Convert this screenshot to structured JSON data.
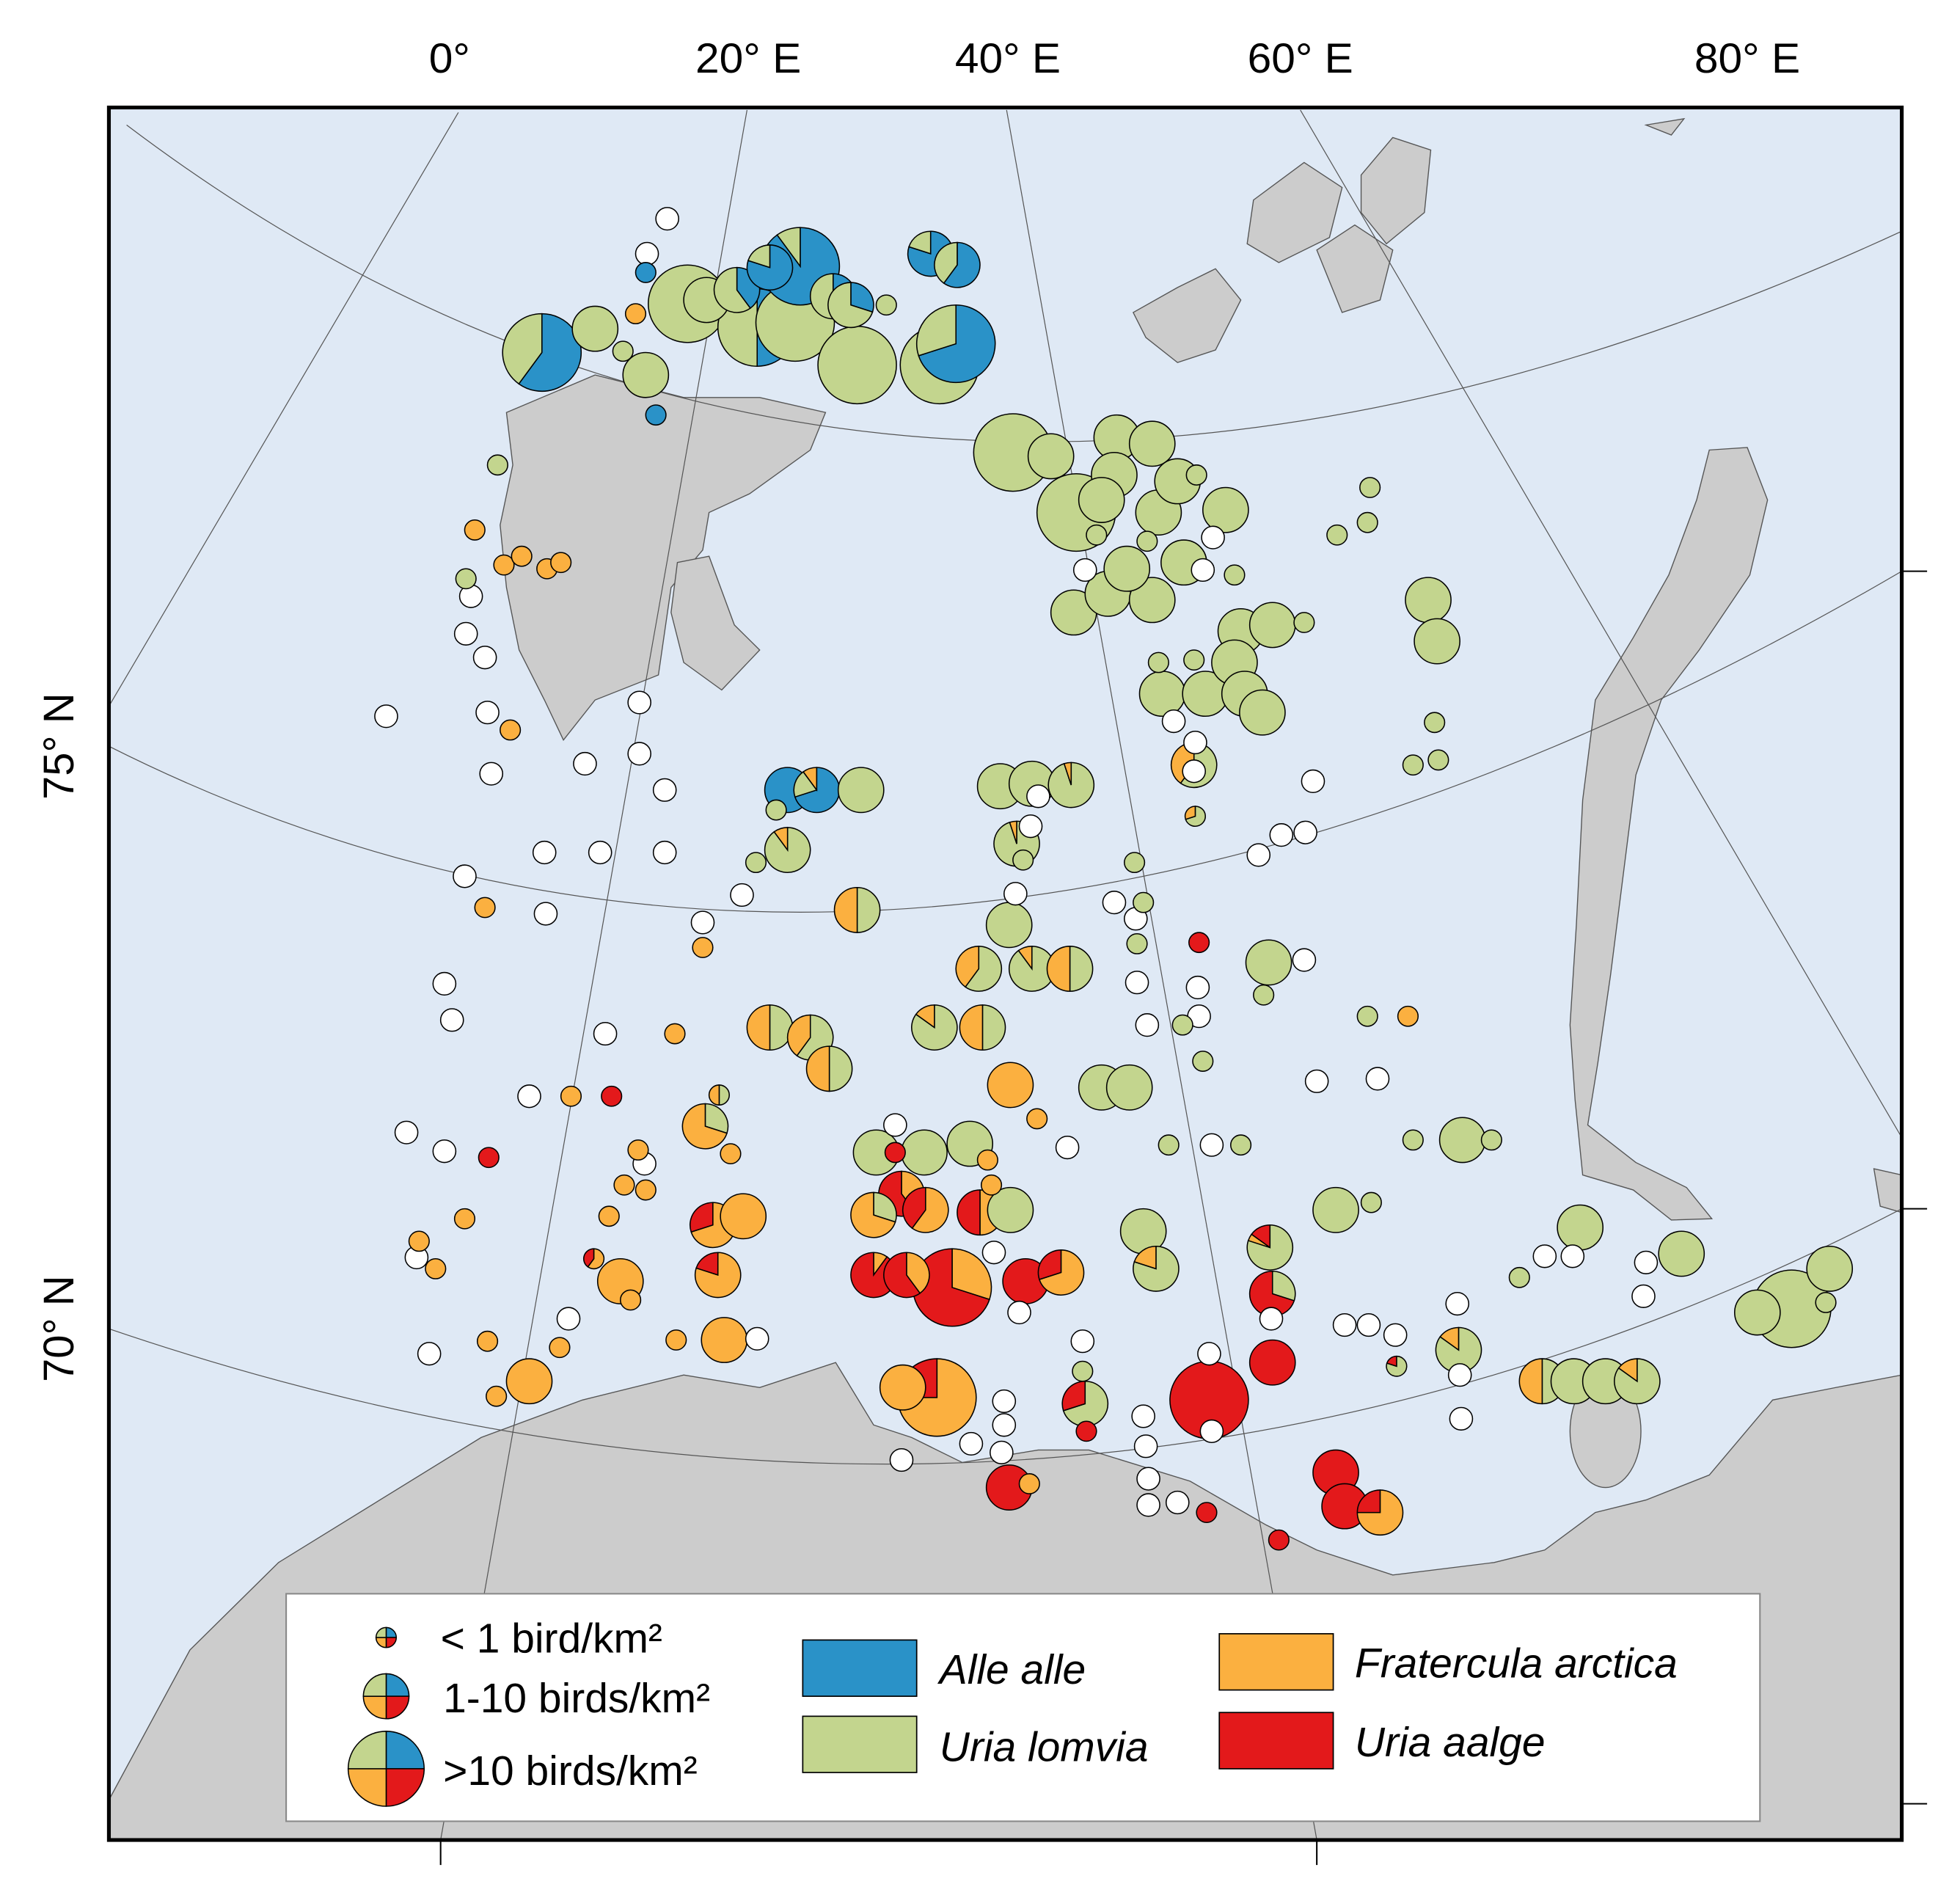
{
  "axes": {
    "top_labels": [
      "0°",
      "20° E",
      "40° E",
      "60° E",
      "80° E"
    ],
    "left_labels": [
      "75° N",
      "70° N"
    ]
  },
  "colors": {
    "water": "#dfe9f5",
    "land": "#cccccc",
    "empty_site": "#ffffff",
    "Alle alle": "#2a92c8",
    "Uria lomvia": "#c3d58e",
    "Fratercula arctica": "#fbb040",
    "Uria aalge": "#e3191b"
  },
  "legend": {
    "density_classes": [
      "< 1 bird/km²",
      "1-10 birds/km²",
      ">10 birds/km²"
    ],
    "species": [
      "Alle alle",
      "Uria lomvia",
      "Fratercula arctica",
      "Uria aalge"
    ]
  },
  "site_value_order": [
    "density",
    "Alle alle",
    "Uria lomvia",
    "Fratercula arctica",
    "Uria aalge"
  ],
  "sites": [
    [
      "0"
    ],
    [
      "0"
    ],
    [
      "<1",
      1,
      0,
      0,
      0
    ],
    [
      ">10",
      0.6,
      0.4,
      0,
      0
    ],
    [
      "1-10",
      0,
      1,
      0,
      0
    ],
    [
      "<1",
      0,
      1,
      0,
      0
    ],
    [
      "1-10",
      0,
      1,
      0,
      0
    ],
    [
      "<1",
      1,
      0,
      0,
      0
    ],
    [
      ">10",
      0,
      1,
      0,
      0
    ],
    [
      "<1",
      0,
      0,
      1,
      0
    ],
    [
      "1-10",
      0,
      1,
      0,
      0
    ],
    [
      ">10",
      0.5,
      0.5,
      0,
      0
    ],
    [
      "1-10",
      0.4,
      0.6,
      0,
      0
    ],
    [
      ">10",
      0,
      1,
      0,
      0
    ],
    [
      ">10",
      0.9,
      0.1,
      0,
      0
    ],
    [
      "1-10",
      0.8,
      0.2,
      0,
      0
    ],
    [
      "1-10",
      0.5,
      0.5,
      0,
      0
    ],
    [
      "1-10",
      0.3,
      0.7,
      0,
      0
    ],
    [
      "<1",
      0,
      1,
      0,
      0
    ],
    [
      ">10",
      0,
      1,
      0,
      0
    ],
    [
      "1-10",
      0.8,
      0.2,
      0,
      0
    ],
    [
      "1-10",
      0.6,
      0.4,
      0,
      0
    ],
    [
      ">10",
      0,
      1,
      0,
      0
    ],
    [
      ">10",
      0.7,
      0.3,
      0,
      0
    ],
    [
      ">10",
      0,
      1,
      0,
      0
    ],
    [
      "1-10",
      0,
      1,
      0,
      0
    ],
    [
      ">10",
      0,
      1,
      0,
      0
    ],
    [
      "1-10",
      0,
      1,
      0,
      0
    ],
    [
      "1-10",
      0,
      1,
      0,
      0
    ],
    [
      "1-10",
      0,
      1,
      0,
      0
    ],
    [
      "1-10",
      0,
      1,
      0,
      0
    ],
    [
      "1-10",
      0,
      1,
      0,
      0
    ],
    [
      "1-10",
      0,
      1,
      0,
      0
    ],
    [
      "<1",
      0,
      1,
      0,
      0
    ],
    [
      "1-10",
      0,
      1,
      0,
      0
    ],
    [
      "<1",
      0,
      1,
      0,
      0
    ],
    [
      "<1",
      0,
      1,
      0,
      0
    ],
    [
      "<1",
      0,
      1,
      0,
      0
    ],
    [
      "1-10",
      0,
      1,
      0,
      0
    ],
    [
      "1-10",
      0,
      1,
      0,
      0
    ],
    [
      "1-10",
      0,
      1,
      0,
      0
    ],
    [
      "1-10",
      0,
      1,
      0,
      0
    ],
    [
      "1-10",
      0,
      1,
      0,
      0
    ],
    [
      "0"
    ],
    [
      "0"
    ],
    [
      "0"
    ],
    [
      "1-10",
      0,
      1,
      0,
      0
    ],
    [
      "1-10",
      0,
      1,
      0,
      0
    ],
    [
      "<1",
      0,
      1,
      0,
      0
    ],
    [
      "<1",
      0,
      1,
      0,
      0
    ],
    [
      "<1",
      0,
      1,
      0,
      0
    ],
    [
      "1-10",
      0,
      1,
      0,
      0
    ],
    [
      "1-10",
      0,
      1,
      0,
      0
    ],
    [
      "1-10",
      0,
      1,
      0,
      0
    ],
    [
      "1-10",
      0,
      1,
      0,
      0
    ],
    [
      "1-10",
      0,
      1,
      0,
      0
    ],
    [
      "0"
    ],
    [
      "0"
    ],
    [
      "1-10",
      0,
      0.6,
      0.4,
      0
    ],
    [
      "0"
    ],
    [
      "<1",
      0,
      0.7,
      0.3,
      0
    ],
    [
      "<1",
      0,
      1,
      0,
      0
    ],
    [
      "<1",
      0,
      1,
      0,
      0
    ],
    [
      "<1",
      0,
      1,
      0,
      0
    ],
    [
      "1-10",
      0,
      1,
      0,
      0
    ],
    [
      "1-10",
      0,
      1,
      0,
      0
    ],
    [
      "<1",
      0,
      1,
      0,
      0
    ],
    [
      "<1",
      0,
      1,
      0,
      0
    ],
    [
      "<1",
      0,
      1,
      0,
      0
    ],
    [
      "0"
    ],
    [
      "0"
    ],
    [
      "0"
    ],
    [
      "0"
    ],
    [
      "<1",
      0,
      1,
      0,
      0
    ],
    [
      "<1",
      0,
      0,
      1,
      0
    ],
    [
      "<1",
      0,
      0,
      1,
      0
    ],
    [
      "<1",
      0,
      0,
      1,
      0
    ],
    [
      "<1",
      0,
      0,
      1,
      0
    ],
    [
      "<1",
      0,
      0,
      1,
      0
    ],
    [
      "<1",
      0,
      1,
      0,
      0
    ],
    [
      "0"
    ],
    [
      "0"
    ],
    [
      "0"
    ],
    [
      "0"
    ],
    [
      "<1",
      0,
      0,
      1,
      0
    ],
    [
      "0"
    ],
    [
      "0"
    ],
    [
      "0"
    ],
    [
      "0"
    ],
    [
      "0"
    ],
    [
      "0"
    ],
    [
      "0"
    ],
    [
      "0"
    ],
    [
      "0"
    ],
    [
      "0"
    ],
    [
      "<1",
      0,
      0,
      1,
      0
    ],
    [
      "0"
    ],
    [
      "0"
    ],
    [
      "0"
    ],
    [
      "<1",
      0,
      0,
      1,
      0
    ],
    [
      "0"
    ],
    [
      "0"
    ],
    [
      "0"
    ],
    [
      "<1",
      0,
      0,
      1,
      0
    ],
    [
      "1-10",
      1,
      0,
      0,
      0
    ],
    [
      "1-10",
      0.7,
      0.2,
      0.1,
      0
    ],
    [
      "1-10",
      0,
      1,
      0,
      0
    ],
    [
      "<1",
      0,
      1,
      0,
      0
    ],
    [
      "1-10",
      0,
      0.9,
      0.1,
      0
    ],
    [
      "<1",
      0,
      1,
      0,
      0
    ],
    [
      "1-10",
      0,
      0.5,
      0.5,
      0
    ],
    [
      "1-10",
      0,
      1,
      0,
      0
    ],
    [
      "1-10",
      0,
      1,
      0,
      0
    ],
    [
      "1-10",
      0,
      0.95,
      0.05,
      0
    ],
    [
      "0"
    ],
    [
      "0"
    ],
    [
      "1-10",
      0,
      0.95,
      0.05,
      0
    ],
    [
      "<1",
      0,
      1,
      0,
      0
    ],
    [
      "0"
    ],
    [
      "1-10",
      0,
      1,
      0,
      0
    ],
    [
      "1-10",
      0,
      0.6,
      0.4,
      0
    ],
    [
      "1-10",
      0,
      0.9,
      0.1,
      0
    ],
    [
      "1-10",
      0,
      0.5,
      0.5,
      0
    ],
    [
      "<1",
      0,
      1,
      0,
      0
    ],
    [
      "0"
    ],
    [
      "<1",
      0,
      1,
      0,
      0
    ],
    [
      "0"
    ],
    [
      "<1",
      0,
      1,
      0,
      0
    ],
    [
      "<1",
      0,
      0,
      0,
      1
    ],
    [
      "0"
    ],
    [
      "0"
    ],
    [
      "0"
    ],
    [
      "<1",
      0,
      1,
      0,
      0
    ],
    [
      "0"
    ],
    [
      "<1",
      0,
      1,
      0,
      0
    ],
    [
      "1-10",
      0,
      1,
      0,
      0
    ],
    [
      "<1",
      0,
      1,
      0,
      0
    ],
    [
      "0"
    ],
    [
      "<1",
      0,
      1,
      0,
      0
    ],
    [
      "<1",
      0,
      0,
      1,
      0
    ],
    [
      "1-10",
      0,
      0.5,
      0.5,
      0
    ],
    [
      "1-10",
      0,
      0.6,
      0.4,
      0
    ],
    [
      "1-10",
      0,
      0.5,
      0.5,
      0
    ],
    [
      "1-10",
      0,
      0.85,
      0.15,
      0
    ],
    [
      "1-10",
      0,
      0.5,
      0.5,
      0
    ],
    [
      "1-10",
      0,
      0,
      1,
      0
    ],
    [
      "<1",
      0,
      0,
      1,
      0
    ],
    [
      "1-10",
      0,
      1,
      0,
      0
    ],
    [
      "1-10",
      0,
      1,
      0,
      0
    ],
    [
      "0"
    ],
    [
      "0"
    ],
    [
      "0"
    ],
    [
      "<1",
      0,
      1,
      0,
      0
    ],
    [
      "0"
    ],
    [
      "<1",
      0,
      1,
      0,
      0
    ],
    [
      "<1",
      0,
      1,
      0,
      0
    ],
    [
      "1-10",
      0,
      1,
      0,
      0
    ],
    [
      "<1",
      0,
      1,
      0,
      0
    ],
    [
      "0"
    ],
    [
      "<1",
      0,
      0,
      1,
      0
    ],
    [
      "<1",
      0,
      0,
      0,
      1
    ],
    [
      "0"
    ],
    [
      "0"
    ],
    [
      "<1",
      0,
      0,
      0,
      1
    ],
    [
      "1-10",
      0,
      0.3,
      0.7,
      0
    ],
    [
      "<1",
      0,
      0.5,
      0.5,
      0
    ],
    [
      "<1",
      0,
      0,
      1,
      0
    ],
    [
      "<1",
      0,
      0,
      1,
      0
    ],
    [
      "0"
    ],
    [
      "<1",
      0,
      0,
      1,
      0
    ],
    [
      "<1",
      0,
      0,
      1,
      0
    ],
    [
      "<1",
      0,
      0,
      1,
      0
    ],
    [
      "<1",
      0,
      0,
      1,
      0
    ],
    [
      "<1",
      0,
      0,
      1,
      0
    ],
    [
      "0"
    ],
    [
      "<1",
      0,
      0,
      1,
      0
    ],
    [
      "<1",
      0,
      0,
      0.6,
      0.4
    ],
    [
      "1-10",
      0,
      0,
      1,
      0
    ],
    [
      "<1",
      0,
      0,
      1,
      0
    ],
    [
      "1-10",
      0,
      0,
      0.7,
      0.3
    ],
    [
      "1-10",
      0,
      0,
      1,
      0
    ],
    [
      "1-10",
      0,
      0,
      0.8,
      0.2
    ],
    [
      "0"
    ],
    [
      "1-10",
      0,
      0,
      1,
      0
    ],
    [
      "0"
    ],
    [
      "<1",
      0,
      0,
      1,
      0
    ],
    [
      "0"
    ],
    [
      "<1",
      0,
      0,
      1,
      0
    ],
    [
      "<1",
      0,
      0,
      1,
      0
    ],
    [
      "1-10",
      0,
      0,
      1,
      0
    ],
    [
      "<1",
      0,
      0,
      1,
      0
    ],
    [
      "1-10",
      0,
      1,
      0,
      0
    ],
    [
      "1-10",
      0,
      1,
      0,
      0
    ],
    [
      "1-10",
      0,
      1,
      0,
      0
    ],
    [
      "0"
    ],
    [
      "<1",
      0,
      0,
      0,
      1
    ],
    [
      "<1",
      0,
      0,
      1,
      0
    ],
    [
      "<1",
      0,
      0,
      1,
      0
    ],
    [
      "1-10",
      0,
      0,
      0.4,
      0.6
    ],
    [
      "1-10",
      0,
      0.3,
      0.7,
      0
    ],
    [
      "1-10",
      0,
      0,
      0.6,
      0.4
    ],
    [
      "1-10",
      0,
      0,
      0.5,
      0.5
    ],
    [
      "1-10",
      0,
      1,
      0,
      0
    ],
    [
      "0"
    ],
    [
      "1-10",
      0,
      0,
      0.1,
      0.9
    ],
    [
      "1-10",
      0,
      0,
      0.4,
      0.6
    ],
    [
      ">10",
      0,
      0,
      0.3,
      0.7
    ],
    [
      "1-10",
      0,
      0,
      0,
      1
    ],
    [
      "1-10",
      0,
      0,
      0.7,
      0.3
    ],
    [
      "0"
    ],
    [
      "1-10",
      0,
      1,
      0,
      0
    ],
    [
      "1-10",
      0,
      0.8,
      0.2,
      0
    ],
    [
      "1-10",
      0,
      0.8,
      0.05,
      0.15
    ],
    [
      "1-10",
      0,
      0.3,
      0,
      0.7
    ],
    [
      "0"
    ],
    [
      "1-10",
      0,
      1,
      0,
      0
    ],
    [
      "<1",
      0,
      1,
      0,
      0
    ],
    [
      "0"
    ],
    [
      "<1",
      0,
      1,
      0,
      0
    ],
    [
      "1-10",
      0,
      0.7,
      0,
      0.3
    ],
    [
      "<1",
      0,
      0,
      0,
      1
    ],
    [
      "1-10",
      0,
      0,
      1,
      0
    ],
    [
      ">10",
      0,
      0,
      0.75,
      0.25
    ],
    [
      "0"
    ],
    [
      "0"
    ],
    [
      "0"
    ],
    [
      "0"
    ],
    [
      "0"
    ],
    [
      "1-10",
      0,
      0,
      0,
      1
    ],
    [
      "<1",
      0,
      0,
      1,
      0
    ],
    [
      ">10",
      0,
      0,
      0,
      1
    ],
    [
      "0"
    ],
    [
      "0"
    ],
    [
      "1-10",
      0,
      0,
      0,
      1
    ],
    [
      "0"
    ],
    [
      "0"
    ],
    [
      "0"
    ],
    [
      "0"
    ],
    [
      "0"
    ],
    [
      "<1",
      0,
      0,
      0,
      1
    ],
    [
      "<1",
      0,
      0,
      0,
      1
    ],
    [
      "1-10",
      0,
      0,
      0,
      1
    ],
    [
      "1-10",
      0,
      0,
      0,
      1
    ],
    [
      "1-10",
      0,
      0,
      0.75,
      0.25
    ],
    [
      "0"
    ],
    [
      "0"
    ],
    [
      "0"
    ],
    [
      "<1",
      0,
      0.8,
      0,
      0.2
    ],
    [
      "1-10",
      0,
      0.85,
      0.15,
      0
    ],
    [
      "0"
    ],
    [
      "0"
    ],
    [
      "0"
    ],
    [
      "1-10",
      0,
      0.5,
      0.5,
      0
    ],
    [
      "1-10",
      0,
      1,
      0,
      0
    ],
    [
      "1-10",
      0,
      1,
      0,
      0
    ],
    [
      "1-10",
      0,
      0.85,
      0.15,
      0
    ],
    [
      "<1",
      0,
      1,
      0,
      0
    ],
    [
      "0"
    ],
    [
      "0"
    ],
    [
      "1-10",
      0,
      1,
      0,
      0
    ],
    [
      "0"
    ],
    [
      "0"
    ],
    [
      "1-10",
      0,
      1,
      0,
      0
    ],
    [
      "1-10",
      0,
      1,
      0,
      0
    ],
    [
      ">10",
      0,
      1,
      0,
      0
    ],
    [
      "1-10",
      0,
      1,
      0,
      0
    ],
    [
      "<1",
      0,
      1,
      0,
      0
    ]
  ]
}
